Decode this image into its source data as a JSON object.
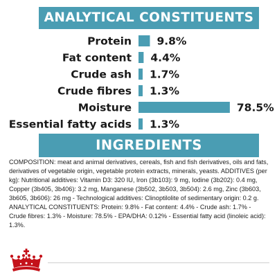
{
  "header": {
    "title": "ANALYTICAL CONSTITUENTS"
  },
  "chart_data": {
    "type": "bar",
    "orientation": "horizontal",
    "categories": [
      "Protein",
      "Fat content",
      "Crude ash",
      "Crude fibres",
      "Moisture",
      "Essential fatty acids"
    ],
    "values": [
      9.8,
      4.4,
      1.7,
      1.3,
      78.5,
      1.3
    ],
    "value_labels": [
      "9.8%",
      "4.4%",
      "1.7%",
      "1.3%",
      "78.5%",
      "1.3%"
    ],
    "unit": "%",
    "title": "ANALYTICAL CONSTITUENTS",
    "xlim": [
      0,
      100
    ],
    "grid": false,
    "legend": "none",
    "bar_color": "#4a9db3"
  },
  "ingredients": {
    "title": "INGREDIENTS",
    "composition": "COMPOSITION: meat and animal derivatives, cereals, fish and fish derivatives, oils and fats, derivatives of vegetable origin, vegetable protein extracts, minerals, yeasts. ADDITIVES (per kg): Nutritional additives: Vitamin D3: 320 IU, Iron (3b103): 9 mg, Iodine (3b202): 0.4 mg, Copper (3b405, 3b406): 3.2 mg, Manganese (3b502, 3b503, 3b504): 2.6 mg, Zinc (3b603, 3b605, 3b606): 26 mg - Technological additives: Clinoptilolite of sedimentary origin: 0.2 g. ANALYTICAL CONSTITUENTS: Protein: 9.8% - Fat content: 4.4% - Crude ash: 1.7% - Crude fibres: 1.3% - Moisture: 78.5% - EPA/DHA: 0.12% - Essential fatty acid (linoleic acid): 1.3%."
  },
  "brand": {
    "logo_icon": "royal-crown-icon",
    "color": "#c4121a"
  },
  "colors": {
    "accent": "#4a9db3",
    "text": "#1a1a1a",
    "logo_red": "#c4121a"
  }
}
